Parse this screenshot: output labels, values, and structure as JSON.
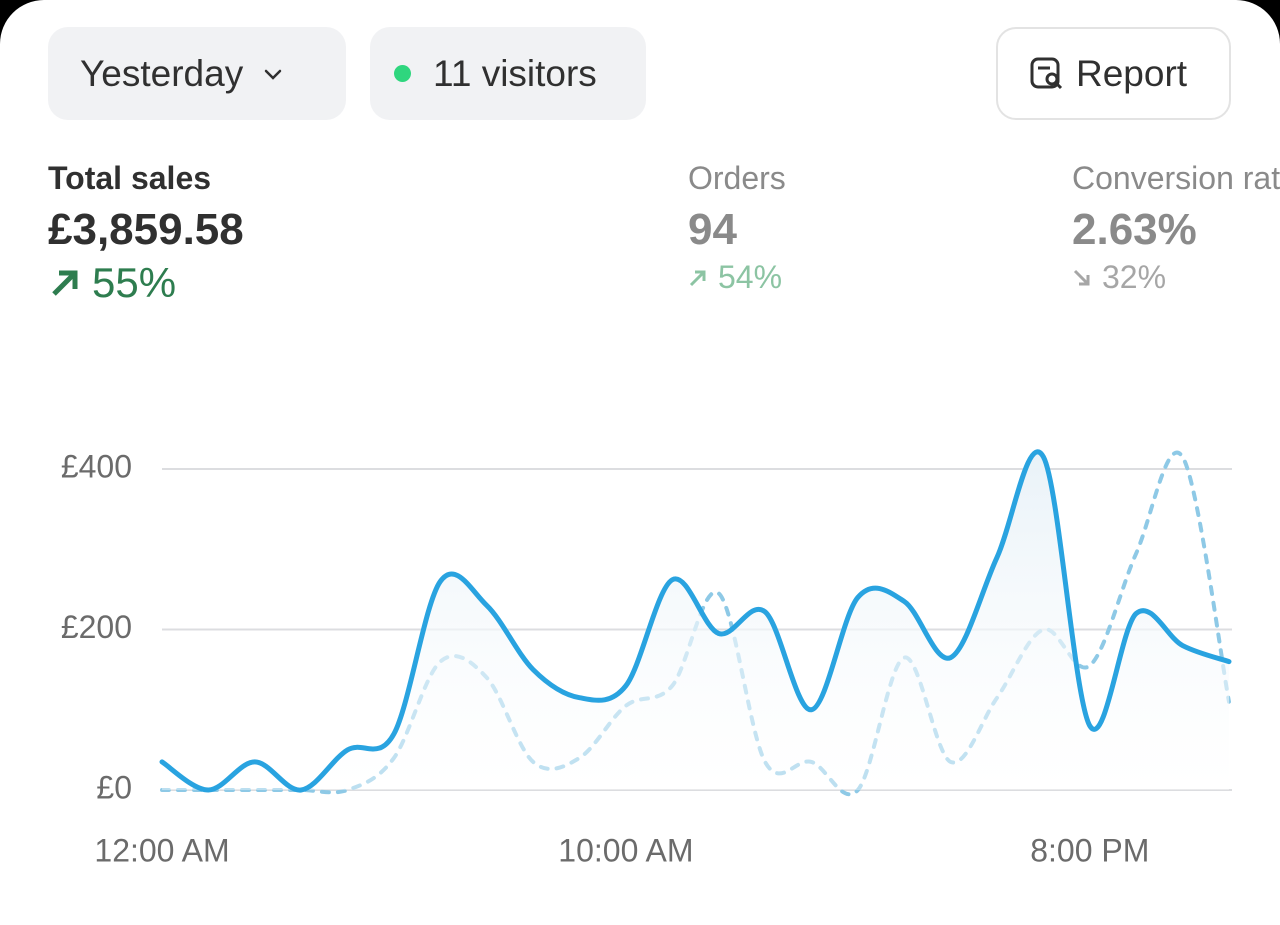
{
  "toolbar": {
    "date_filter": "Yesterday",
    "visitors": "11 visitors",
    "report": "Report"
  },
  "metrics": [
    {
      "label": "Total sales",
      "value": "£3,859.58",
      "change": "55%"
    },
    {
      "label": "Orders",
      "value": "94",
      "change": "54%"
    },
    {
      "label": "Conversion rate",
      "value": "2.63%",
      "change": "32%"
    }
  ],
  "chart_data": {
    "type": "line",
    "categories": [
      "12:00 AM",
      null,
      null,
      null,
      null,
      null,
      null,
      null,
      null,
      null,
      "10:00 AM",
      null,
      null,
      null,
      null,
      null,
      null,
      null,
      null,
      null,
      "8:00 PM",
      null,
      null,
      null
    ],
    "series": [
      {
        "color": "#29a3e0",
        "dashed": false,
        "area": true,
        "values": [
          35,
          0,
          35,
          0,
          50,
          70,
          260,
          230,
          150,
          115,
          130,
          262,
          195,
          222,
          100,
          240,
          235,
          165,
          290,
          415,
          80,
          220,
          180,
          160
        ]
      },
      {
        "color": "#8ec9e6",
        "dashed": true,
        "area": false,
        "values": [
          0,
          0,
          0,
          0,
          0,
          40,
          160,
          140,
          35,
          40,
          105,
          130,
          245,
          35,
          35,
          0,
          165,
          35,
          115,
          200,
          155,
          295,
          415,
          110
        ]
      }
    ],
    "ylim": [
      0,
      400
    ],
    "yticks": [
      {
        "value": 0,
        "label": "£0"
      },
      {
        "value": 200,
        "label": "£200"
      },
      {
        "value": 400,
        "label": "£400"
      }
    ],
    "grid": true
  }
}
